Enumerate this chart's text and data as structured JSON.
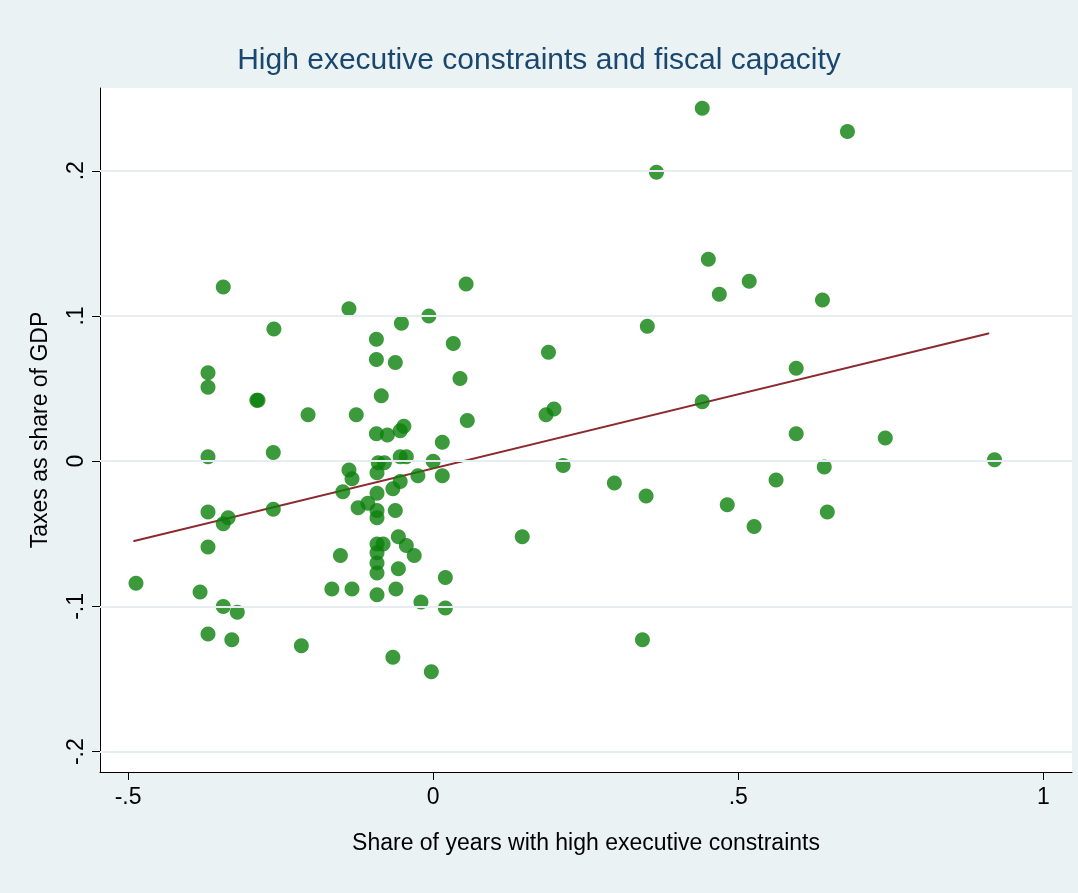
{
  "chart_data": {
    "type": "scatter",
    "title": "High executive constraints and fiscal capacity",
    "xlabel": "Share of years with high executive constraints",
    "ylabel": "Taxes as share of GDP",
    "xlim": [
      -0.546,
      1.047
    ],
    "ylim": [
      -0.214,
      0.257
    ],
    "xticks": [
      {
        "value": -0.5,
        "label": "-.5"
      },
      0,
      {
        "value": 0.5,
        "label": ".5"
      },
      1
    ],
    "yticks": [
      {
        "value": -0.2,
        "label": "-.2"
      },
      {
        "value": -0.1,
        "label": "-.1"
      },
      0,
      {
        "value": 0.1,
        "label": ".1"
      },
      {
        "value": 0.2,
        "label": ".2"
      }
    ],
    "grid": "y",
    "marker": "circle",
    "series": [
      {
        "color": "#0b7f0b",
        "x": [
          -0.487,
          -0.382,
          -0.369,
          -0.369,
          -0.369,
          -0.369,
          -0.369,
          -0.369,
          -0.344,
          -0.344,
          -0.336,
          -0.344,
          -0.321,
          -0.33,
          -0.289,
          -0.261,
          -0.262,
          -0.262,
          -0.287,
          -0.205,
          -0.216,
          -0.138,
          -0.052,
          -0.007,
          -0.093,
          -0.093,
          -0.062,
          0.033,
          0.044,
          -0.085,
          -0.126,
          0.056,
          -0.093,
          -0.075,
          -0.054,
          -0.048,
          0.015,
          -0.054,
          -0.044,
          -0.09,
          -0.08,
          -0.092,
          -0.138,
          -0.133,
          0,
          0.015,
          -0.025,
          -0.054,
          -0.066,
          -0.092,
          -0.148,
          -0.123,
          -0.107,
          -0.092,
          -0.092,
          -0.062,
          -0.152,
          -0.166,
          -0.133,
          -0.092,
          -0.082,
          -0.092,
          -0.092,
          -0.092,
          -0.092,
          -0.057,
          -0.044,
          -0.031,
          -0.057,
          -0.061,
          -0.02,
          0.02,
          0.02,
          -0.066,
          -0.003,
          0.441,
          0.679,
          0.366,
          0.451,
          0.518,
          0.469,
          0.638,
          0.054,
          0.351,
          0.189,
          0.595,
          0.441,
          0.198,
          0.185,
          0.595,
          0.741,
          0.92,
          0.213,
          0.641,
          0.297,
          0.349,
          0.562,
          0.482,
          0.646,
          0.526,
          0.146,
          0.343
        ],
        "values": [
          -0.084,
          -0.09,
          0.061,
          0.051,
          0.003,
          -0.035,
          -0.059,
          -0.119,
          0.12,
          -0.043,
          -0.039,
          -0.1,
          -0.104,
          -0.123,
          0.042,
          0.091,
          0.006,
          -0.033,
          0.042,
          0.032,
          -0.127,
          0.105,
          0.095,
          0.1,
          0.084,
          0.07,
          0.068,
          0.081,
          0.057,
          0.045,
          0.032,
          0.028,
          0.019,
          0.018,
          0.021,
          0.024,
          0.013,
          0.003,
          0.003,
          -0.001,
          -0.001,
          -0.008,
          -0.006,
          -0.012,
          0,
          -0.01,
          -0.01,
          -0.014,
          -0.019,
          -0.022,
          -0.021,
          -0.032,
          -0.029,
          -0.039,
          -0.034,
          -0.034,
          -0.065,
          -0.088,
          -0.088,
          -0.057,
          -0.057,
          -0.063,
          -0.07,
          -0.077,
          -0.092,
          -0.052,
          -0.058,
          -0.065,
          -0.074,
          -0.088,
          -0.097,
          -0.08,
          -0.101,
          -0.135,
          -0.145,
          0.243,
          0.227,
          0.199,
          0.139,
          0.124,
          0.115,
          0.111,
          0.122,
          0.093,
          0.075,
          0.064,
          0.041,
          0.036,
          0.032,
          0.019,
          0.016,
          0.001,
          -0.003,
          -0.004,
          -0.015,
          -0.024,
          -0.013,
          -0.03,
          -0.035,
          -0.045,
          -0.052,
          -0.123
        ]
      },
      {
        "type": "line",
        "color": "#8c2a2f",
        "x": [
          -0.49,
          0.91
        ],
        "values": [
          -0.055,
          0.088
        ],
        "marker": "none"
      }
    ]
  }
}
